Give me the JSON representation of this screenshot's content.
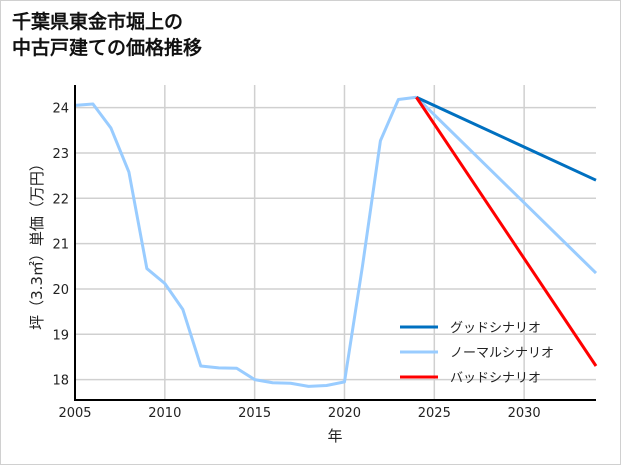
{
  "chart_data": {
    "type": "line",
    "title_lines": [
      "千葉県東金市堀上の",
      "中古戸建ての価格推移"
    ],
    "xlabel": "年",
    "ylabel": "坪（3.3㎡）単価（万円）",
    "xlim": [
      2005,
      2034
    ],
    "ylim": [
      17.55,
      24.5
    ],
    "xticks": [
      2005,
      2010,
      2015,
      2020,
      2025,
      2030
    ],
    "yticks": [
      18,
      19,
      20,
      21,
      22,
      23,
      24
    ],
    "grid": true,
    "legend_position": "bottom-right",
    "history": {
      "color": "#99ccff",
      "x": [
        2005,
        2006,
        2007,
        2008,
        2009,
        2010,
        2011,
        2012,
        2013,
        2014,
        2015,
        2016,
        2017,
        2018,
        2019,
        2020,
        2021,
        2022,
        2023,
        2024
      ],
      "y": [
        24.05,
        24.08,
        23.55,
        22.58,
        20.45,
        20.12,
        19.55,
        18.3,
        18.26,
        18.25,
        18.0,
        17.93,
        17.92,
        17.85,
        17.87,
        17.95,
        20.5,
        23.27,
        24.18,
        24.23
      ]
    },
    "series": [
      {
        "name": "グッドシナリオ",
        "color": "#0070c0",
        "x": [
          2024,
          2034
        ],
        "y": [
          24.23,
          22.4
        ]
      },
      {
        "name": "ノーマルシナリオ",
        "color": "#99ccff",
        "x": [
          2024,
          2034
        ],
        "y": [
          24.23,
          20.35
        ]
      },
      {
        "name": "バッドシナリオ",
        "color": "#ff0000",
        "x": [
          2024,
          2034
        ],
        "y": [
          24.23,
          18.3
        ]
      }
    ]
  }
}
